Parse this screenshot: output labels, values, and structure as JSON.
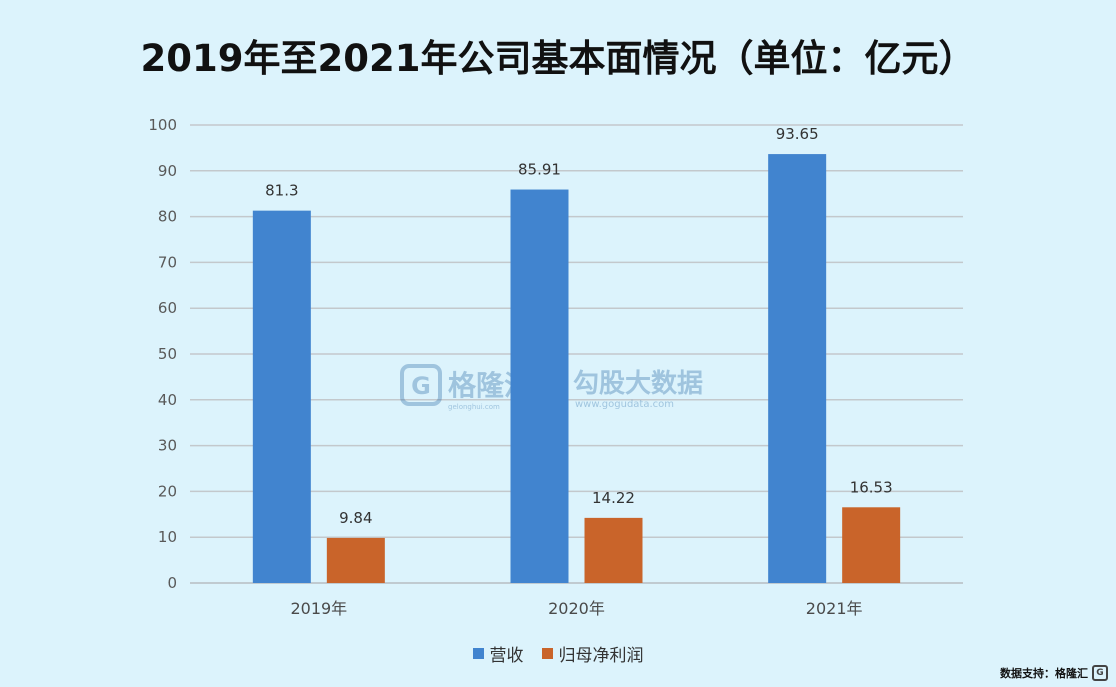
{
  "chart_data": {
    "type": "bar",
    "title": "2019年至2021年公司基本面情况（单位：亿元）",
    "categories": [
      "2019年",
      "2020年",
      "2021年"
    ],
    "series": [
      {
        "name": "营收",
        "values": [
          81.3,
          85.91,
          93.65
        ],
        "color": "#4184cf"
      },
      {
        "name": "归母净利润",
        "values": [
          9.84,
          14.22,
          16.53
        ],
        "color": "#c9642a"
      }
    ],
    "data_labels": [
      [
        "81.3",
        "85.91",
        "93.65"
      ],
      [
        "9.84",
        "14.22",
        "16.53"
      ]
    ],
    "yticks": [
      "0",
      "10",
      "20",
      "30",
      "40",
      "50",
      "60",
      "70",
      "80",
      "90",
      "100"
    ],
    "ylim": [
      0,
      100
    ],
    "grid": true,
    "legend_position": "bottom"
  },
  "watermark": {
    "brand1": "格隆汇",
    "brand1_url": "gelonghui.com",
    "brand2": "勾股大数据",
    "brand2_url": "www.gogudata.com"
  },
  "footer": {
    "text": "数据支持：格隆汇"
  }
}
